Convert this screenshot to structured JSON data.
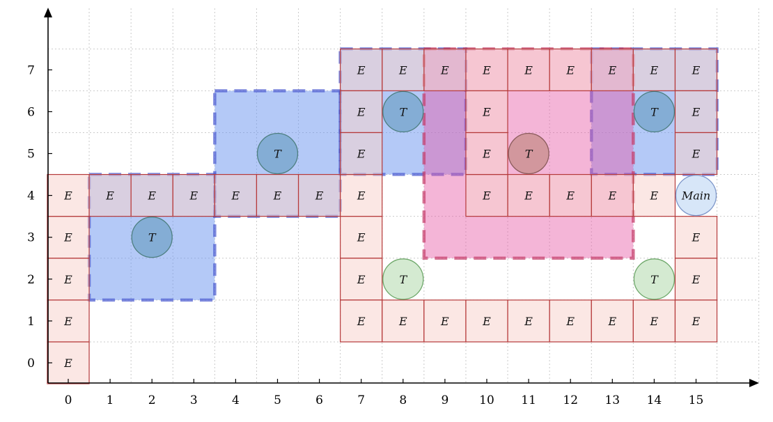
{
  "axes": {
    "x_ticks": [
      "0",
      "1",
      "2",
      "3",
      "4",
      "5",
      "6",
      "7",
      "8",
      "9",
      "10",
      "11",
      "12",
      "13",
      "14",
      "15"
    ],
    "y_ticks": [
      "0",
      "1",
      "2",
      "3",
      "4",
      "5",
      "6",
      "7"
    ]
  },
  "colors": {
    "cell_fill": "#f8d4ce",
    "cell_stroke": "#b5393a",
    "blue_fill": "#6a94f0",
    "blue_stroke": "#4a5ad0",
    "pink_fill": "#e65aa6",
    "pink_stroke": "#c53a68",
    "tower_blue": "#78a6cc",
    "tower_rose": "#c9908f",
    "tower_green": "#cce6c9",
    "main_fill": "#d7e6f8",
    "main_stroke": "#7d96c9"
  },
  "regions": [
    {
      "kind": "blue",
      "x": [
        0.5,
        3.5
      ],
      "y": [
        1.5,
        4.5
      ]
    },
    {
      "kind": "blue",
      "x": [
        3.5,
        6.5
      ],
      "y": [
        3.5,
        6.5
      ]
    },
    {
      "kind": "blue",
      "x": [
        6.5,
        9.5
      ],
      "y": [
        4.5,
        7.5
      ]
    },
    {
      "kind": "blue",
      "x": [
        12.5,
        15.5
      ],
      "y": [
        4.5,
        7.5
      ]
    },
    {
      "kind": "pink",
      "x": [
        8.5,
        13.5
      ],
      "y": [
        2.5,
        7.5
      ]
    }
  ],
  "cells": [
    {
      "x": 0,
      "y": 0,
      "label": "E"
    },
    {
      "x": 0,
      "y": 1,
      "label": "E"
    },
    {
      "x": 0,
      "y": 2,
      "label": "E"
    },
    {
      "x": 0,
      "y": 3,
      "label": "E"
    },
    {
      "x": 0,
      "y": 4,
      "label": "E"
    },
    {
      "x": 1,
      "y": 4,
      "label": "E"
    },
    {
      "x": 2,
      "y": 4,
      "label": "E"
    },
    {
      "x": 3,
      "y": 4,
      "label": "E"
    },
    {
      "x": 4,
      "y": 4,
      "label": "E"
    },
    {
      "x": 5,
      "y": 4,
      "label": "E"
    },
    {
      "x": 6,
      "y": 4,
      "label": "E"
    },
    {
      "x": 7,
      "y": 4,
      "label": "E"
    },
    {
      "x": 7,
      "y": 3,
      "label": "E"
    },
    {
      "x": 7,
      "y": 2,
      "label": "E"
    },
    {
      "x": 7,
      "y": 1,
      "label": "E"
    },
    {
      "x": 8,
      "y": 1,
      "label": "E"
    },
    {
      "x": 9,
      "y": 1,
      "label": "E"
    },
    {
      "x": 10,
      "y": 1,
      "label": "E"
    },
    {
      "x": 11,
      "y": 1,
      "label": "E"
    },
    {
      "x": 12,
      "y": 1,
      "label": "E"
    },
    {
      "x": 13,
      "y": 1,
      "label": "E"
    },
    {
      "x": 14,
      "y": 1,
      "label": "E"
    },
    {
      "x": 15,
      "y": 1,
      "label": "E"
    },
    {
      "x": 15,
      "y": 2,
      "label": "E"
    },
    {
      "x": 15,
      "y": 3,
      "label": "E"
    },
    {
      "x": 14,
      "y": 4,
      "label": "E"
    },
    {
      "x": 13,
      "y": 4,
      "label": "E"
    },
    {
      "x": 12,
      "y": 4,
      "label": "E"
    },
    {
      "x": 11,
      "y": 4,
      "label": "E"
    },
    {
      "x": 10,
      "y": 4,
      "label": "E"
    },
    {
      "x": 10,
      "y": 5,
      "label": "E"
    },
    {
      "x": 10,
      "y": 6,
      "label": "E"
    },
    {
      "x": 10,
      "y": 7,
      "label": "E"
    },
    {
      "x": 11,
      "y": 7,
      "label": "E"
    },
    {
      "x": 12,
      "y": 7,
      "label": "E"
    },
    {
      "x": 13,
      "y": 7,
      "label": "E"
    },
    {
      "x": 14,
      "y": 7,
      "label": "E"
    },
    {
      "x": 15,
      "y": 7,
      "label": "E"
    },
    {
      "x": 15,
      "y": 6,
      "label": "E"
    },
    {
      "x": 15,
      "y": 5,
      "label": "E"
    },
    {
      "x": 9,
      "y": 7,
      "label": "E"
    },
    {
      "x": 8,
      "y": 7,
      "label": "E"
    },
    {
      "x": 7,
      "y": 7,
      "label": "E"
    },
    {
      "x": 7,
      "y": 6,
      "label": "E"
    },
    {
      "x": 7,
      "y": 5,
      "label": "E"
    }
  ],
  "towers": [
    {
      "x": 2,
      "y": 3,
      "label": "T",
      "color": "blue"
    },
    {
      "x": 5,
      "y": 5,
      "label": "T",
      "color": "blue"
    },
    {
      "x": 8,
      "y": 6,
      "label": "T",
      "color": "blue"
    },
    {
      "x": 14,
      "y": 6,
      "label": "T",
      "color": "blue"
    },
    {
      "x": 11,
      "y": 5,
      "label": "T",
      "color": "rose"
    },
    {
      "x": 8,
      "y": 2,
      "label": "T",
      "color": "green"
    },
    {
      "x": 14,
      "y": 2,
      "label": "T",
      "color": "green"
    }
  ],
  "main": {
    "x": 15,
    "y": 4,
    "label": "Main"
  }
}
